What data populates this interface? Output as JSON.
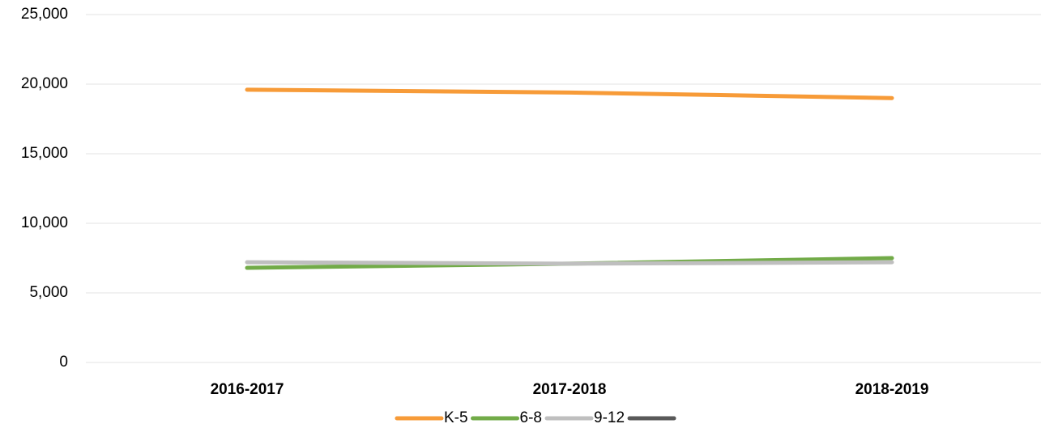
{
  "chart_data": {
    "type": "line",
    "categories": [
      "2016-2017",
      "2017-2018",
      "2018-2019"
    ],
    "series": [
      {
        "name": "K-5",
        "color": "#f79b38",
        "values": [
          19600,
          19400,
          19000
        ]
      },
      {
        "name": "6-8",
        "color": "#72ab48",
        "values": [
          6800,
          7100,
          7500
        ]
      },
      {
        "name": "9-12",
        "color": "#bfbfbf",
        "values": [
          7200,
          7100,
          7200
        ]
      },
      {
        "color": "#595959",
        "values": [
          null,
          null,
          null
        ]
      }
    ],
    "ylim": [
      0,
      25000
    ],
    "yticks": [
      0,
      {
        "value": 5000,
        "label": "5,000"
      },
      {
        "value": 10000,
        "label": "10,000"
      },
      {
        "value": 15000,
        "label": "15,000"
      },
      {
        "value": 20000,
        "label": "20,000"
      },
      {
        "value": 25000,
        "label": "25,000"
      }
    ],
    "grid": true,
    "legend": "bottom"
  }
}
